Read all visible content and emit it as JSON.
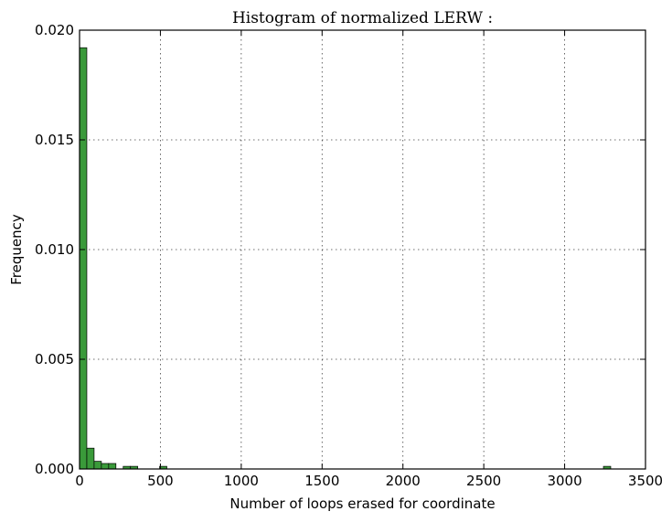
{
  "chart_data": {
    "type": "bar",
    "title": "Histogram of normalized LERW :",
    "xlabel": "Number of loops erased for coordinate",
    "ylabel": "Frequency",
    "xlim": [
      0,
      3500
    ],
    "ylim": [
      0,
      0.02
    ],
    "xticks": [
      0,
      500,
      1000,
      1500,
      2000,
      2500,
      3000,
      3500
    ],
    "xtick_labels": [
      "0",
      "500",
      "1000",
      "1500",
      "2000",
      "2500",
      "3000",
      "3500"
    ],
    "yticks": [
      0,
      0.005,
      0.01,
      0.015,
      0.02
    ],
    "ytick_labels": [
      "0.000",
      "0.005",
      "0.010",
      "0.015",
      "0.020"
    ],
    "grid": true,
    "bar_color": "#3a9a3a",
    "bin_width": 45,
    "bins": [
      {
        "x": 0,
        "value": 0.0192
      },
      {
        "x": 45,
        "value": 0.00095
      },
      {
        "x": 90,
        "value": 0.00035
      },
      {
        "x": 135,
        "value": 0.00025
      },
      {
        "x": 180,
        "value": 0.00025
      },
      {
        "x": 270,
        "value": 0.00012
      },
      {
        "x": 315,
        "value": 0.00012
      },
      {
        "x": 495,
        "value": 0.00012
      },
      {
        "x": 3240,
        "value": 0.00012
      }
    ]
  }
}
